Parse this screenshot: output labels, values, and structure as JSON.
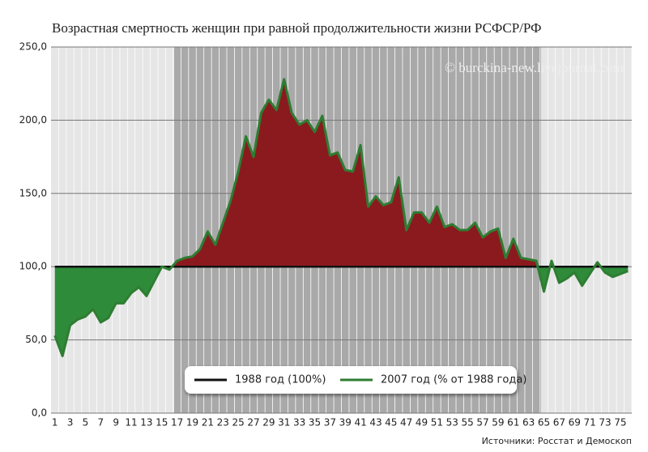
{
  "chart_data": {
    "type": "line",
    "title": "Возрастная смертность женщин при равной продолжительности жизни РСФСР/РФ",
    "watermark": "© burckina-new.livejournal.com",
    "source": "Источники: Росстат и Демоскоп",
    "x": [
      1,
      2,
      3,
      4,
      5,
      6,
      7,
      8,
      9,
      10,
      11,
      12,
      13,
      14,
      15,
      16,
      17,
      18,
      19,
      20,
      21,
      22,
      23,
      24,
      25,
      26,
      27,
      28,
      29,
      30,
      31,
      32,
      33,
      34,
      35,
      36,
      37,
      38,
      39,
      40,
      41,
      42,
      43,
      44,
      45,
      46,
      47,
      48,
      49,
      50,
      51,
      52,
      53,
      54,
      55,
      56,
      57,
      58,
      59,
      60,
      61,
      62,
      63,
      64,
      65,
      66,
      67,
      68,
      69,
      70,
      71,
      72,
      73,
      74,
      75,
      76
    ],
    "series": [
      {
        "name": "1988 год (100%)",
        "color": "#111111",
        "values": [
          100,
          100,
          100,
          100,
          100,
          100,
          100,
          100,
          100,
          100,
          100,
          100,
          100,
          100,
          100,
          100,
          100,
          100,
          100,
          100,
          100,
          100,
          100,
          100,
          100,
          100,
          100,
          100,
          100,
          100,
          100,
          100,
          100,
          100,
          100,
          100,
          100,
          100,
          100,
          100,
          100,
          100,
          100,
          100,
          100,
          100,
          100,
          100,
          100,
          100,
          100,
          100,
          100,
          100,
          100,
          100,
          100,
          100,
          100,
          100,
          100,
          100,
          100,
          100,
          100,
          100,
          100,
          100,
          100,
          100,
          100,
          100,
          100,
          100,
          100,
          100
        ]
      },
      {
        "name": "2007 год (% от 1988 года)",
        "color": "#2e7d32",
        "values": [
          53,
          39,
          60,
          64,
          66,
          71,
          62,
          65,
          75,
          75,
          82,
          86,
          80,
          90,
          100,
          98,
          104,
          106,
          107,
          112,
          124,
          115,
          130,
          145,
          165,
          189,
          175,
          205,
          214,
          207,
          228,
          205,
          197,
          200,
          192,
          203,
          176,
          178,
          166,
          165,
          183,
          141,
          148,
          142,
          144,
          161,
          125,
          137,
          137,
          130,
          141,
          127,
          129,
          125,
          125,
          130,
          120,
          124,
          126,
          106,
          119,
          106,
          105,
          104,
          83,
          104,
          89,
          92,
          96,
          87,
          95,
          103,
          96,
          93,
          95,
          97
        ]
      }
    ],
    "above_color": "#8b1a1f",
    "below_color": "#2e8b3a",
    "xlim": [
      0.5,
      76.5
    ],
    "xticks": [
      1,
      3,
      5,
      7,
      9,
      11,
      13,
      15,
      17,
      19,
      21,
      23,
      25,
      27,
      29,
      31,
      33,
      35,
      37,
      39,
      41,
      43,
      45,
      47,
      49,
      51,
      53,
      55,
      57,
      59,
      61,
      63,
      65,
      67,
      69,
      71,
      73,
      75
    ],
    "ylim": [
      0,
      250
    ],
    "yticks": [
      {
        "value": 0,
        "label": "0,0"
      },
      {
        "value": 50,
        "label": "50,0"
      },
      {
        "value": 100,
        "label": "100,0"
      },
      {
        "value": 150,
        "label": "150,0"
      },
      {
        "value": 200,
        "label": "200,0"
      },
      {
        "value": 250,
        "label": "250,0"
      }
    ],
    "grid": true
  }
}
